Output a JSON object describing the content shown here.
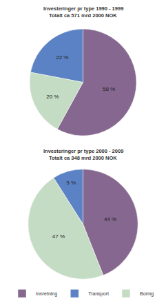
{
  "chart_data": [
    {
      "type": "pie",
      "title": "Investeringer pr type 1990 - 1999",
      "subtitle": "Totalt ca 571 mrd 2000 NOK",
      "categories": [
        "Innretning",
        "Transport",
        "Boring"
      ],
      "values": [
        58,
        22,
        20
      ],
      "value_labels": [
        "58 %",
        "22 %",
        "20 %"
      ],
      "colors": [
        "#86678f",
        "#5b82c4",
        "#c5dcc4"
      ],
      "data_labels": true,
      "legend": "bottom"
    },
    {
      "type": "pie",
      "title": "Investeringer pr type 2000 - 2009",
      "subtitle": "Totalt ca 348 mrd 2000 NOK",
      "categories": [
        "Innretning",
        "Transport",
        "Boring"
      ],
      "values": [
        44,
        9,
        47
      ],
      "value_labels": [
        "44 %",
        "9 %",
        "47 %"
      ],
      "colors": [
        "#86678f",
        "#5b82c4",
        "#c5dcc4"
      ],
      "data_labels": true,
      "legend": "bottom"
    }
  ]
}
